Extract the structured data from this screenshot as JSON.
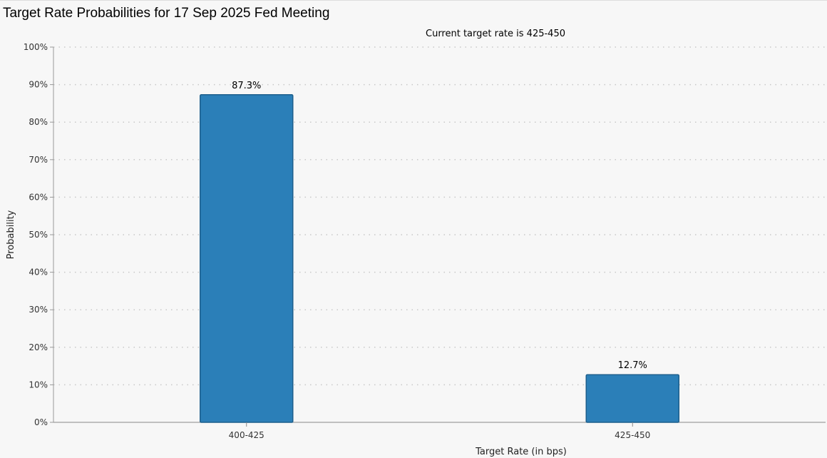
{
  "page": {
    "title": "Target Rate Probabilities for 17 Sep 2025 Fed Meeting"
  },
  "chart_data": {
    "type": "bar",
    "title": "Target Rate Probabilities for 17 Sep 2025 Fed Meeting",
    "subtitle": "Current target rate is 425-450",
    "xlabel": "Target Rate (in bps)",
    "ylabel": "Probability",
    "categories": [
      "400-425",
      "425-450"
    ],
    "values": [
      87.3,
      12.7
    ],
    "data_labels": [
      "87.3%",
      "12.7%"
    ],
    "ylim": [
      0,
      100
    ],
    "yticks": [
      "0%",
      "10%",
      "20%",
      "30%",
      "40%",
      "50%",
      "60%",
      "70%",
      "80%",
      "90%",
      "100%"
    ],
    "grid": true,
    "legend": "none",
    "colors": {
      "bar": "#2b7fb8",
      "bar_border": "#1d5f8c",
      "grid": "#c8c8c8"
    }
  }
}
